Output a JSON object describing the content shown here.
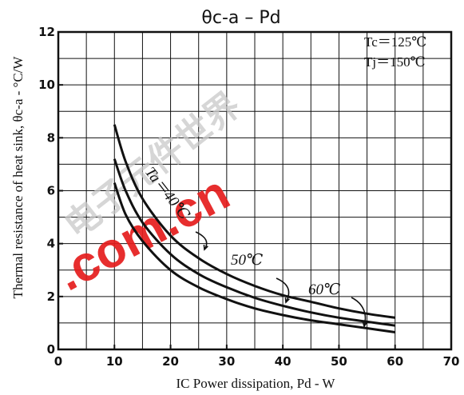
{
  "chart_data": {
    "type": "line",
    "title": "θc-a  –  Pd",
    "xlabel": "IC Power dissipation, Pd - W",
    "ylabel": "Thermal resistance of heat sink, θc-a - °C/W",
    "xlim": [
      0,
      70
    ],
    "ylim": [
      0,
      12
    ],
    "xticks": [
      0,
      10,
      20,
      30,
      40,
      50,
      60,
      70
    ],
    "yticks": [
      0,
      2,
      4,
      6,
      8,
      10,
      12
    ],
    "xtick_labels": [
      "0",
      "10",
      "20",
      "30",
      "40",
      "50",
      "60",
      "70"
    ],
    "ytick_labels": [
      "0",
      "2",
      "4",
      "6",
      "8",
      "10",
      "12"
    ],
    "grid": true,
    "conditions": [
      "Tc＝125℃",
      "Tj＝150℃"
    ],
    "series": [
      {
        "name": "Ta＝40℃",
        "x": [
          10,
          12,
          15,
          20,
          25,
          30,
          35,
          40,
          45,
          50,
          55,
          60
        ],
        "y": [
          8.5,
          7.1,
          5.7,
          4.3,
          3.45,
          2.85,
          2.4,
          2.05,
          1.8,
          1.55,
          1.35,
          1.2
        ]
      },
      {
        "name": "50℃",
        "x": [
          10,
          12,
          15,
          20,
          25,
          30,
          35,
          40,
          45,
          50,
          55,
          60
        ],
        "y": [
          7.2,
          6.0,
          4.8,
          3.6,
          2.85,
          2.35,
          1.95,
          1.65,
          1.4,
          1.2,
          1.05,
          0.9
        ]
      },
      {
        "name": "60℃",
        "x": [
          10,
          12,
          15,
          20,
          25,
          30,
          35,
          40,
          45,
          50,
          55,
          60
        ],
        "y": [
          6.3,
          5.1,
          4.1,
          3.0,
          2.35,
          1.9,
          1.55,
          1.3,
          1.1,
          0.95,
          0.8,
          0.65
        ]
      }
    ],
    "watermark": {
      "dot": ".com.cn",
      "cjk": "电子元件世界"
    }
  }
}
